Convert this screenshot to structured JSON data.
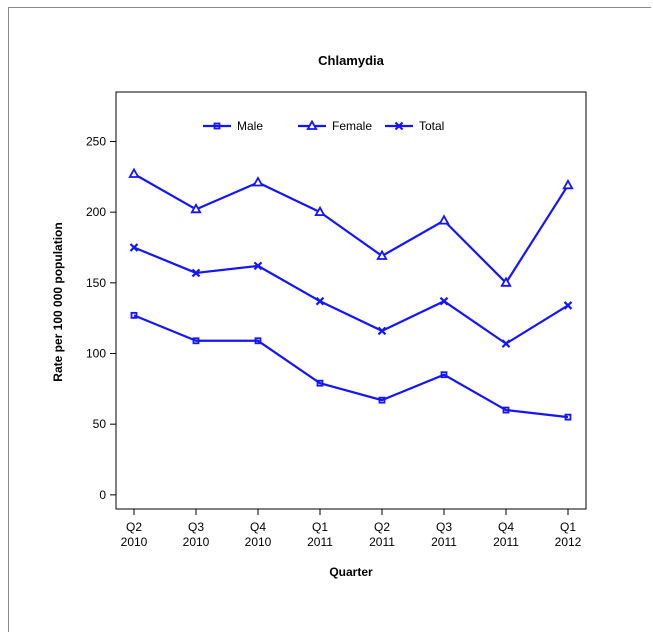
{
  "chart_data": {
    "type": "line",
    "title": "Chlamydia",
    "xlabel": "Quarter",
    "ylabel": "Rate per 100 000 population",
    "categories": [
      [
        "Q2",
        "2010"
      ],
      [
        "Q3",
        "2010"
      ],
      [
        "Q4",
        "2010"
      ],
      [
        "Q1",
        "2011"
      ],
      [
        "Q2",
        "2011"
      ],
      [
        "Q3",
        "2011"
      ],
      [
        "Q4",
        "2011"
      ],
      [
        "Q1",
        "2012"
      ]
    ],
    "ylim": [
      -10,
      285
    ],
    "yticks": [
      0,
      50,
      100,
      150,
      200,
      250
    ],
    "legend_position": "top-center",
    "grid": false,
    "color": "#1414ff",
    "series": [
      {
        "name": "Male",
        "marker": "square",
        "values": [
          127,
          109,
          109,
          79,
          67,
          85,
          60,
          55
        ]
      },
      {
        "name": "Female",
        "marker": "triangle",
        "values": [
          227,
          202,
          221,
          200,
          169,
          194,
          150,
          219
        ]
      },
      {
        "name": "Total",
        "marker": "x",
        "values": [
          175,
          157,
          162,
          137,
          116,
          137,
          107,
          134
        ]
      }
    ]
  }
}
